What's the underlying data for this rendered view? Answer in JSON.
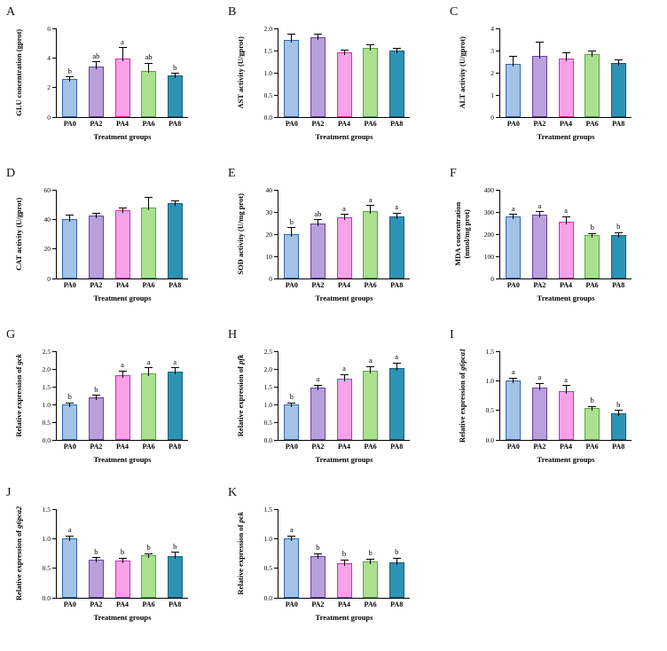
{
  "figure": {
    "xlabel": "Treatment groups",
    "categories": [
      "PA0",
      "PA2",
      "PA4",
      "PA6",
      "PA8"
    ],
    "bar_styles": [
      {
        "fill": "#A3C2E8",
        "border": "#3465A8"
      },
      {
        "fill": "#B9A0DC",
        "border": "#6A3FA0"
      },
      {
        "fill": "#FDA0E9",
        "border": "#D02CB5"
      },
      {
        "fill": "#A9E18F",
        "border": "#58A63A"
      },
      {
        "fill": "#2D93B5",
        "border": "#1A5F7A"
      }
    ],
    "error_bar_color": "#000000"
  },
  "chart_data": [
    {
      "type": "bar",
      "panel": "A",
      "ylabel": "GLU concentration (gprot)",
      "xlabel": "Treatment groups",
      "categories": [
        "PA0",
        "PA2",
        "PA4",
        "PA6",
        "PA8"
      ],
      "values": [
        2.6,
        3.4,
        3.95,
        3.15,
        2.8
      ],
      "errors": [
        0.12,
        0.35,
        0.75,
        0.5,
        0.15
      ],
      "letters": [
        "b",
        "ab",
        "a",
        "ab",
        "b"
      ],
      "ylim": [
        0,
        6
      ],
      "yticks": [
        "0",
        "2",
        "4",
        "6"
      ]
    },
    {
      "type": "bar",
      "panel": "B",
      "ylabel": "AST activity (U/gprot)",
      "xlabel": "Treatment groups",
      "categories": [
        "PA0",
        "PA2",
        "PA4",
        "PA6",
        "PA8"
      ],
      "values": [
        1.75,
        1.8,
        1.47,
        1.57,
        1.51
      ],
      "errors": [
        0.13,
        0.08,
        0.05,
        0.06,
        0.04
      ],
      "letters": [
        "",
        "",
        "",
        "",
        ""
      ],
      "ylim": [
        0,
        2
      ],
      "yticks": [
        "0.0",
        "0.5",
        "1.0",
        "1.5",
        "2.0"
      ]
    },
    {
      "type": "bar",
      "panel": "C",
      "ylabel": "ALT activity (U/gprot)",
      "xlabel": "Treatment groups",
      "categories": [
        "PA0",
        "PA2",
        "PA4",
        "PA6",
        "PA8"
      ],
      "values": [
        2.4,
        2.75,
        2.65,
        2.85,
        2.45
      ],
      "errors": [
        0.35,
        0.65,
        0.25,
        0.15,
        0.12
      ],
      "letters": [
        "",
        "",
        "",
        "",
        ""
      ],
      "ylim": [
        0,
        4
      ],
      "yticks": [
        "0",
        "1",
        "2",
        "3",
        "4"
      ]
    },
    {
      "type": "bar",
      "panel": "D",
      "ylabel": "CAT activity (U/gprot)",
      "xlabel": "Treatment groups",
      "categories": [
        "PA0",
        "PA2",
        "PA4",
        "PA6",
        "PA8"
      ],
      "values": [
        40,
        42.5,
        46,
        48,
        51
      ],
      "errors": [
        3,
        1.5,
        2,
        7,
        1.5
      ],
      "letters": [
        "",
        "",
        "",
        "",
        ""
      ],
      "ylim": [
        0,
        60
      ],
      "yticks": [
        "0",
        "20",
        "40",
        "60"
      ]
    },
    {
      "type": "bar",
      "panel": "E",
      "ylabel": "SOD activity (U/mg prot)",
      "xlabel": "Treatment groups",
      "categories": [
        "PA0",
        "PA2",
        "PA4",
        "PA6",
        "PA8"
      ],
      "values": [
        20,
        25,
        27.5,
        30.5,
        28
      ],
      "errors": [
        3,
        1.5,
        1.5,
        2.5,
        1.5
      ],
      "letters": [
        "b",
        "ab",
        "a",
        "a",
        "a"
      ],
      "ylim": [
        0,
        40
      ],
      "yticks": [
        "0",
        "10",
        "20",
        "30",
        "40"
      ]
    },
    {
      "type": "bar",
      "panel": "F",
      "ylabel": "MDA concentration\n(nmol/mg prot)",
      "xlabel": "Treatment groups",
      "categories": [
        "PA0",
        "PA2",
        "PA4",
        "PA6",
        "PA8"
      ],
      "values": [
        280,
        290,
        255,
        195,
        195
      ],
      "errors": [
        10,
        12,
        25,
        8,
        12
      ],
      "letters": [
        "a",
        "a",
        "a",
        "b",
        "b"
      ],
      "ylim": [
        0,
        400
      ],
      "yticks": [
        "0",
        "100",
        "200",
        "300",
        "400"
      ]
    },
    {
      "type": "bar",
      "panel": "G",
      "ylabel": "Relative expression of ",
      "ylabel_italic": "gck",
      "xlabel": "Treatment groups",
      "categories": [
        "PA0",
        "PA2",
        "PA4",
        "PA6",
        "PA8"
      ],
      "values": [
        1.0,
        1.2,
        1.82,
        1.88,
        1.93
      ],
      "errors": [
        0.05,
        0.06,
        0.12,
        0.15,
        0.1
      ],
      "letters": [
        "b",
        "b",
        "a",
        "a",
        "a"
      ],
      "ylim": [
        0,
        2.5
      ],
      "yticks": [
        "0.0",
        "0.5",
        "1.0",
        "1.5",
        "2.0",
        "2.5"
      ]
    },
    {
      "type": "bar",
      "panel": "H",
      "ylabel": "Relative expression of ",
      "ylabel_italic": "pfk",
      "xlabel": "Treatment groups",
      "categories": [
        "PA0",
        "PA2",
        "PA4",
        "PA6",
        "PA8"
      ],
      "values": [
        1.0,
        1.47,
        1.72,
        1.95,
        2.02
      ],
      "errors": [
        0.05,
        0.08,
        0.13,
        0.12,
        0.15
      ],
      "letters": [
        "b",
        "a",
        "a",
        "a",
        "a"
      ],
      "ylim": [
        0,
        2.5
      ],
      "yticks": [
        "0.0",
        "0.5",
        "1.0",
        "1.5",
        "2.0",
        "2.5"
      ]
    },
    {
      "type": "bar",
      "panel": "I",
      "ylabel": "Relative expression of ",
      "ylabel_italic": "g6pca1",
      "xlabel": "Treatment groups",
      "categories": [
        "PA0",
        "PA2",
        "PA4",
        "PA6",
        "PA8"
      ],
      "values": [
        1.0,
        0.88,
        0.82,
        0.54,
        0.45
      ],
      "errors": [
        0.05,
        0.08,
        0.1,
        0.03,
        0.05
      ],
      "letters": [
        "a",
        "a",
        "a",
        "b",
        "b"
      ],
      "ylim": [
        0,
        1.5
      ],
      "yticks": [
        "0.0",
        "0.5",
        "1.0",
        "1.5"
      ]
    },
    {
      "type": "bar",
      "panel": "J",
      "ylabel": "Relative expression of ",
      "ylabel_italic": "g6pca2",
      "xlabel": "Treatment groups",
      "categories": [
        "PA0",
        "PA2",
        "PA4",
        "PA6",
        "PA8"
      ],
      "values": [
        1.0,
        0.65,
        0.63,
        0.72,
        0.71
      ],
      "errors": [
        0.05,
        0.03,
        0.04,
        0.03,
        0.06
      ],
      "letters": [
        "a",
        "b",
        "b",
        "b",
        "b"
      ],
      "ylim": [
        0,
        1.5
      ],
      "yticks": [
        "0.0",
        "0.5",
        "1.0",
        "1.5"
      ]
    },
    {
      "type": "bar",
      "panel": "K",
      "ylabel": "Relative expression of ",
      "ylabel_italic": "pck",
      "xlabel": "Treatment groups",
      "categories": [
        "PA0",
        "PA2",
        "PA4",
        "PA6",
        "PA8"
      ],
      "values": [
        1.0,
        0.7,
        0.58,
        0.62,
        0.6
      ],
      "errors": [
        0.05,
        0.05,
        0.06,
        0.04,
        0.07
      ],
      "letters": [
        "a",
        "b",
        "b",
        "b",
        "b"
      ],
      "ylim": [
        0,
        1.5
      ],
      "yticks": [
        "0.0",
        "0.5",
        "1.0",
        "1.5"
      ]
    }
  ]
}
